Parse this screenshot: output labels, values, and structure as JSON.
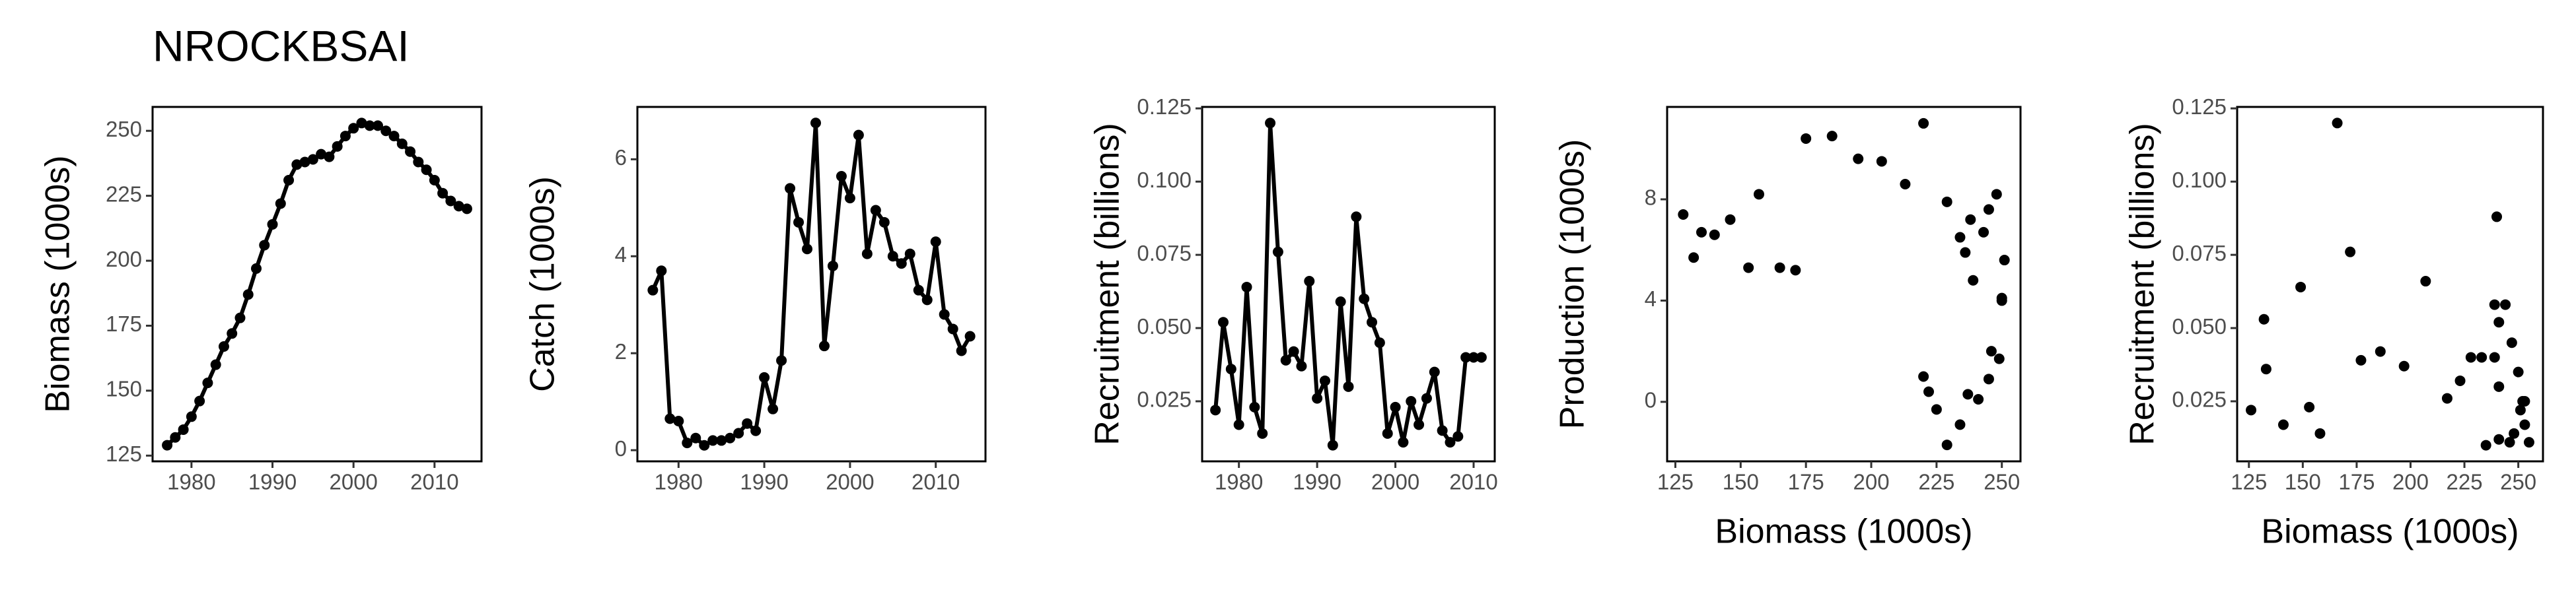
{
  "chart_data": [
    {
      "type": "line",
      "title": "NROCKBSAI",
      "ylabel": "Biomass (1000s)",
      "color": "#000000",
      "x": [
        1977,
        1978,
        1979,
        1980,
        1981,
        1982,
        1983,
        1984,
        1985,
        1986,
        1987,
        1988,
        1989,
        1990,
        1991,
        1992,
        1993,
        1994,
        1995,
        1996,
        1997,
        1998,
        1999,
        2000,
        2001,
        2002,
        2003,
        2004,
        2005,
        2006,
        2007,
        2008,
        2009,
        2010,
        2011,
        2012,
        2013,
        2014
      ],
      "values": [
        129,
        132,
        135,
        140,
        146,
        153,
        160,
        167,
        172,
        178,
        187,
        197,
        206,
        214,
        222,
        231,
        237,
        238,
        239,
        241,
        240,
        244,
        248,
        251,
        253,
        252,
        252,
        250,
        248,
        245,
        242,
        238,
        235,
        231,
        226,
        223,
        221,
        220
      ],
      "xlim": [
        1975.2,
        2015.8
      ],
      "ylim": [
        122.8,
        259.2
      ],
      "xticks": [
        1980,
        1990,
        2000,
        2010
      ],
      "yticks": [
        125,
        150,
        175,
        200,
        225,
        250
      ]
    },
    {
      "type": "line",
      "ylabel": "Catch (1000s)",
      "color": "#000000",
      "x": [
        1977,
        1978,
        1979,
        1980,
        1981,
        1982,
        1983,
        1984,
        1985,
        1986,
        1987,
        1988,
        1989,
        1990,
        1991,
        1992,
        1993,
        1994,
        1995,
        1996,
        1997,
        1998,
        1999,
        2000,
        2001,
        2002,
        2003,
        2004,
        2005,
        2006,
        2007,
        2008,
        2009,
        2010,
        2011,
        2012,
        2013,
        2014
      ],
      "values": [
        3.3,
        3.7,
        0.65,
        0.6,
        0.15,
        0.25,
        0.1,
        0.2,
        0.2,
        0.25,
        0.35,
        0.55,
        0.4,
        1.5,
        0.85,
        1.85,
        5.4,
        4.7,
        4.15,
        6.75,
        2.15,
        3.8,
        5.65,
        5.2,
        6.5,
        4.05,
        4.95,
        4.7,
        4.0,
        3.85,
        4.05,
        3.3,
        3.1,
        4.3,
        2.8,
        2.5,
        2.05,
        2.35
      ],
      "xlim": [
        1975.2,
        2015.8
      ],
      "ylim": [
        -0.23,
        7.08
      ],
      "xticks": [
        1980,
        1990,
        2000,
        2010
      ],
      "yticks": [
        0,
        2,
        4,
        6
      ]
    },
    {
      "type": "line",
      "ylabel": "Recruitment (billions)",
      "color": "#000000",
      "x": [
        1977,
        1978,
        1979,
        1980,
        1981,
        1982,
        1983,
        1984,
        1985,
        1986,
        1987,
        1988,
        1989,
        1990,
        1991,
        1992,
        1993,
        1994,
        1995,
        1996,
        1997,
        1998,
        1999,
        2000,
        2001,
        2002,
        2003,
        2004,
        2005,
        2006,
        2007,
        2008,
        2009,
        2010,
        2011
      ],
      "values": [
        0.022,
        0.052,
        0.036,
        0.017,
        0.064,
        0.023,
        0.014,
        0.12,
        0.076,
        0.039,
        0.042,
        0.037,
        0.066,
        0.026,
        0.032,
        0.01,
        0.059,
        0.03,
        0.088,
        0.06,
        0.052,
        0.045,
        0.014,
        0.023,
        0.011,
        0.025,
        0.017,
        0.026,
        0.035,
        0.015,
        0.011,
        0.013,
        0.04,
        0.04,
        0.04
      ],
      "xlim": [
        1975.3,
        2012.7
      ],
      "ylim": [
        0.0045,
        0.1255
      ],
      "xticks": [
        1980,
        1990,
        2000,
        2010
      ],
      "yticks": [
        0.025,
        {
          "value": 0.05,
          "label": "0.050"
        },
        0.075,
        {
          "value": 0.1,
          "label": "0.100"
        },
        0.125
      ]
    },
    {
      "type": "scatter",
      "xlabel": "Biomass (1000s)",
      "ylabel": "Production (1000s)",
      "color": "#000000",
      "x": [
        128,
        132,
        135,
        140,
        146,
        153,
        157,
        165,
        171,
        175,
        185,
        195,
        204,
        213,
        220,
        220,
        222,
        225,
        229,
        229,
        234,
        234,
        236,
        237,
        238,
        239,
        241,
        243,
        245,
        245,
        246,
        248,
        249,
        250,
        250,
        251
      ],
      "values": [
        7.4,
        5.7,
        6.7,
        6.6,
        7.2,
        5.3,
        8.2,
        5.3,
        5.2,
        10.4,
        10.5,
        9.6,
        9.5,
        8.6,
        11.0,
        1.0,
        0.4,
        -0.3,
        7.9,
        -1.7,
        -0.9,
        6.5,
        5.9,
        0.3,
        7.2,
        4.8,
        0.1,
        6.7,
        0.9,
        7.6,
        2.0,
        8.2,
        1.7,
        4.1,
        4.0,
        5.6
      ],
      "xlim": [
        121.85,
        257.15
      ],
      "ylim": [
        -2.35,
        11.65
      ],
      "xticks": [
        125,
        150,
        175,
        200,
        225,
        250
      ],
      "yticks": [
        0,
        4,
        8
      ]
    },
    {
      "type": "scatter",
      "xlabel": "Biomass (1000s)",
      "ylabel": "Recruitment (billions)",
      "color": "#000000",
      "x": [
        126,
        132,
        133,
        141,
        149,
        153,
        158,
        166,
        172,
        177,
        186,
        197,
        207,
        217,
        223,
        228,
        233,
        235,
        239,
        239,
        240,
        241,
        241,
        241,
        244,
        246,
        247,
        248,
        250,
        251,
        252,
        253,
        255,
        253
      ],
      "values": [
        0.022,
        0.053,
        0.036,
        0.017,
        0.064,
        0.023,
        0.014,
        0.12,
        0.076,
        0.039,
        0.042,
        0.037,
        0.066,
        0.026,
        0.032,
        0.04,
        0.04,
        0.01,
        0.04,
        0.058,
        0.088,
        0.03,
        0.052,
        0.012,
        0.058,
        0.011,
        0.045,
        0.014,
        0.035,
        0.022,
        0.025,
        0.017,
        0.011,
        0.025
      ],
      "xlim": [
        119.55,
        261.45
      ],
      "ylim": [
        0.0045,
        0.1255
      ],
      "xticks": [
        125,
        150,
        175,
        200,
        225,
        250
      ],
      "yticks": [
        0.025,
        {
          "value": 0.05,
          "label": "0.050"
        },
        0.075,
        {
          "value": 0.1,
          "label": "0.100"
        },
        0.125
      ]
    }
  ]
}
